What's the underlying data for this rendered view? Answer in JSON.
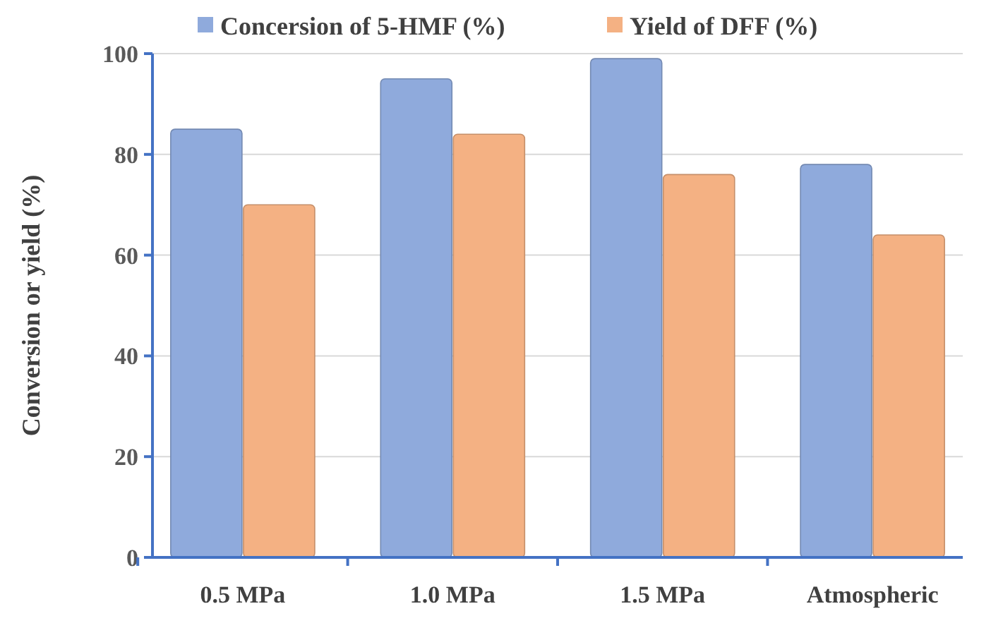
{
  "chart_data": {
    "type": "bar",
    "ylabel": "Conversion or yield (%)",
    "categories": [
      "0.5 MPa",
      "1.0 MPa",
      "1.5 MPa",
      "Atmospheric"
    ],
    "series": [
      {
        "name": "Concersion of 5-HMF (%)",
        "color": "#8faadc",
        "values": [
          85,
          95,
          99,
          78
        ]
      },
      {
        "name": "Yield of DFF (%)",
        "color": "#f4b183",
        "values": [
          70,
          84,
          76,
          64
        ]
      }
    ],
    "ylim": [
      0,
      100
    ],
    "yticks": [
      0,
      20,
      40,
      60,
      80,
      100
    ],
    "grid": "y",
    "legend": "top"
  }
}
